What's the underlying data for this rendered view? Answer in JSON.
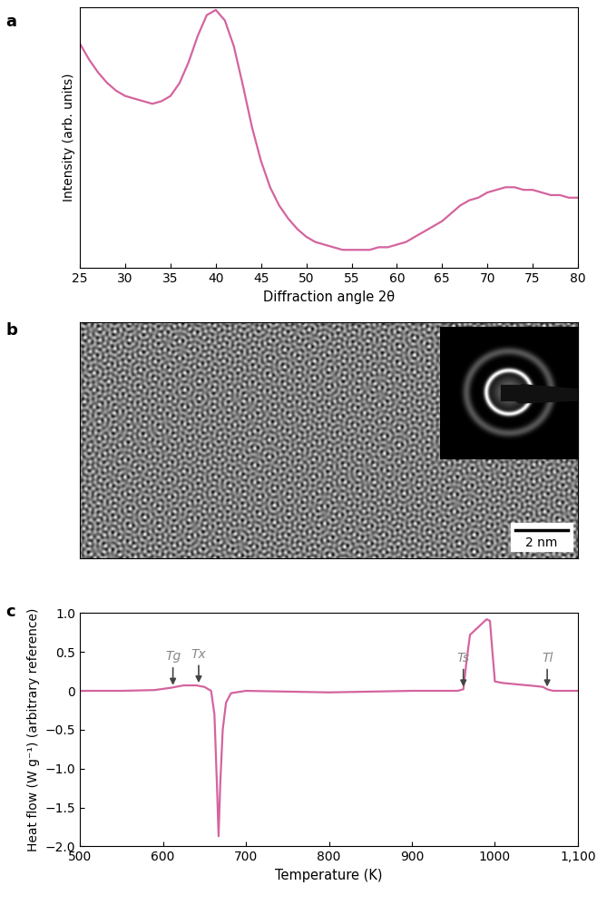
{
  "chart_data": [
    {
      "type": "line",
      "title": "a",
      "x_label": "Diffraction angle 2θ",
      "y_label": "Intensity (arb. units)",
      "x": [
        25,
        26,
        27,
        28,
        29,
        30,
        31,
        32,
        33,
        34,
        35,
        36,
        37,
        38,
        39,
        40,
        41,
        42,
        43,
        44,
        45,
        46,
        47,
        48,
        49,
        50,
        51,
        52,
        53,
        54,
        55,
        56,
        57,
        58,
        59,
        60,
        61,
        62,
        63,
        64,
        65,
        66,
        67,
        68,
        69,
        70,
        71,
        72,
        73,
        74,
        75,
        76,
        77,
        78,
        79,
        80
      ],
      "values": [
        0.86,
        0.8,
        0.75,
        0.71,
        0.68,
        0.66,
        0.65,
        0.64,
        0.63,
        0.64,
        0.66,
        0.71,
        0.79,
        0.89,
        0.97,
        0.99,
        0.95,
        0.85,
        0.7,
        0.54,
        0.41,
        0.31,
        0.24,
        0.19,
        0.15,
        0.12,
        0.1,
        0.09,
        0.08,
        0.07,
        0.07,
        0.07,
        0.07,
        0.08,
        0.08,
        0.09,
        0.1,
        0.12,
        0.14,
        0.16,
        0.18,
        0.21,
        0.24,
        0.26,
        0.27,
        0.29,
        0.3,
        0.31,
        0.31,
        0.3,
        0.3,
        0.29,
        0.28,
        0.28,
        0.27,
        0.27
      ],
      "color": "#d4649e",
      "xlim": [
        25,
        80
      ],
      "xticks": [
        25,
        30,
        35,
        40,
        45,
        50,
        55,
        60,
        65,
        70,
        75,
        80
      ],
      "ylim": [
        0,
        1
      ],
      "yticks": [],
      "tick_labels": "x"
    },
    {
      "type": "image",
      "title": "b",
      "annotations": [
        "2 nm"
      ]
    },
    {
      "type": "line",
      "title": "c",
      "x_label": "Temperature (K)",
      "y_label": "Heat flow (W g⁻¹) (arbitrary reference)",
      "x": [
        500,
        550,
        590,
        610,
        625,
        640,
        650,
        658,
        662,
        665,
        667,
        669,
        672,
        676,
        682,
        700,
        750,
        800,
        850,
        900,
        955,
        962,
        966,
        970,
        976,
        983,
        990,
        994,
        997,
        1000,
        1010,
        1030,
        1050,
        1058,
        1063,
        1070,
        1100
      ],
      "values": [
        0,
        0,
        0.01,
        0.04,
        0.07,
        0.07,
        0.05,
        0.0,
        -0.3,
        -1.2,
        -1.87,
        -1.2,
        -0.5,
        -0.15,
        -0.03,
        0,
        -0.01,
        -0.02,
        -0.01,
        0,
        0,
        0.02,
        0.4,
        0.72,
        0.78,
        0.85,
        0.92,
        0.9,
        0.5,
        0.12,
        0.1,
        0.08,
        0.06,
        0.05,
        0.02,
        0,
        0
      ],
      "color": "#d4649e",
      "xlim": [
        500,
        1100
      ],
      "xticks": [
        500,
        600,
        700,
        800,
        900,
        1000,
        {
          "value": 1100,
          "label": "1,100"
        }
      ],
      "ylim": [
        -2.0,
        1.0
      ],
      "yticks": [
        {
          "value": -2.0,
          "label": "−2.0"
        },
        {
          "value": -1.5,
          "label": "−1.5"
        },
        {
          "value": -1.0,
          "label": "−1.0"
        },
        {
          "value": -0.5,
          "label": "−0.5"
        },
        0,
        0.5,
        1.0
      ],
      "annotations": [
        {
          "text": "Tg",
          "x": 612,
          "y": 0.04
        },
        {
          "text": "Tx",
          "x": 643,
          "y": 0.07
        },
        {
          "text": "Ts",
          "x": 962,
          "y": 0.02
        },
        {
          "text": "Tl",
          "x": 1063,
          "y": 0.02
        }
      ]
    }
  ]
}
